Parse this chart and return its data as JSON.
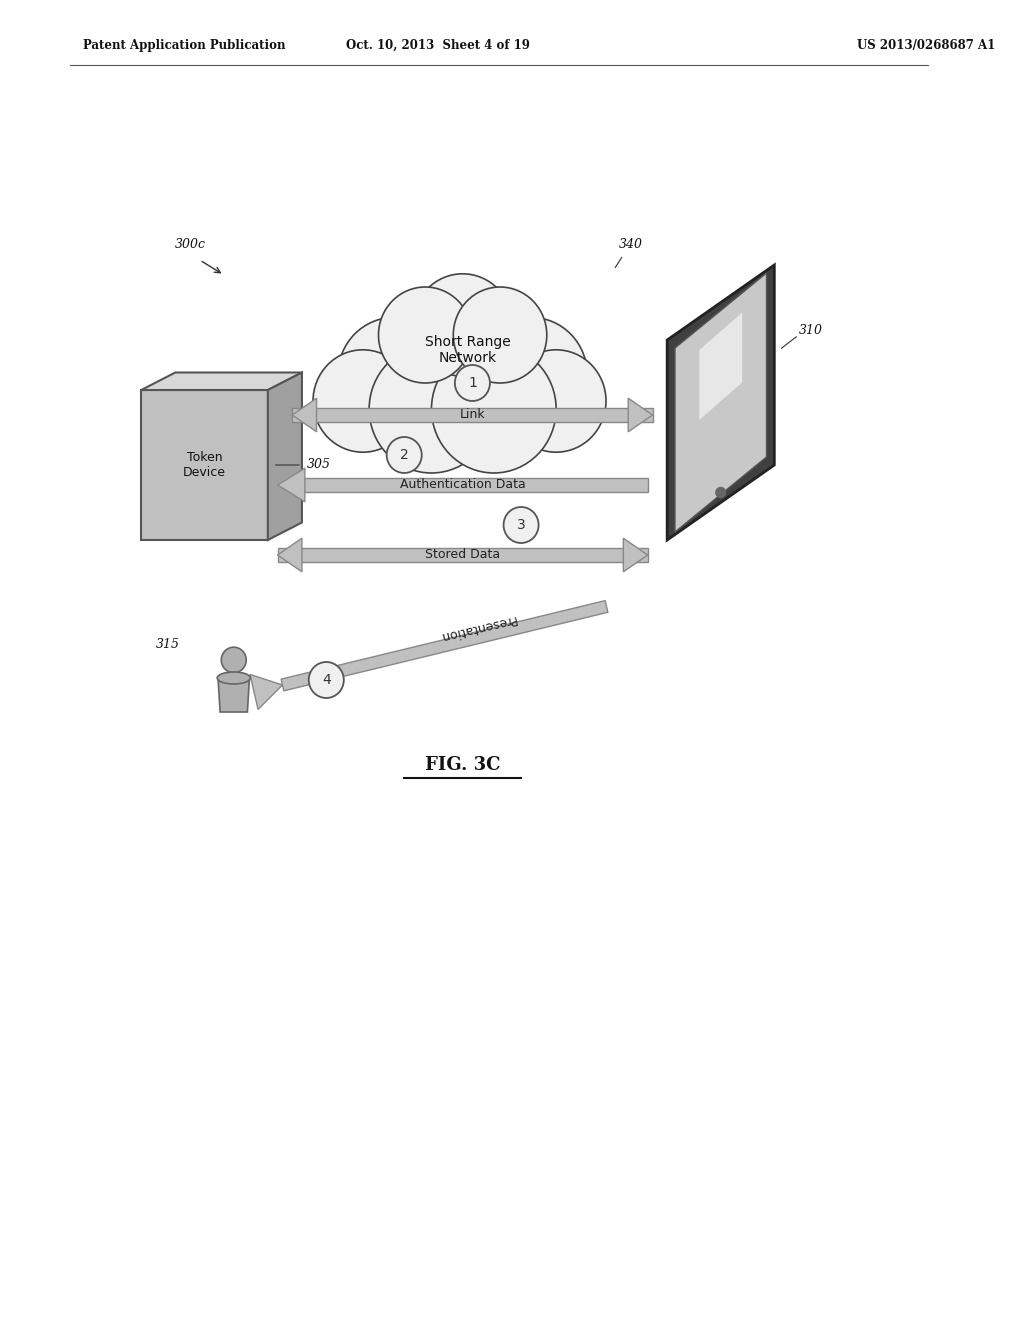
{
  "bg_color": "#ffffff",
  "header_left": "Patent Application Publication",
  "header_center": "Oct. 10, 2013  Sheet 4 of 19",
  "header_right": "US 2013/0268687 A1",
  "figure_label": "FIG. 3C",
  "label_300c": "300c",
  "label_305": "305",
  "label_310": "310",
  "label_315": "315",
  "label_340": "340",
  "cloud_label": "Short Range\nNetwork",
  "token_label": "Token\nDevice",
  "step1_label": "Link",
  "step2_label": "Authentication Data",
  "step3_label": "Stored Data",
  "step4_label": "Presentation",
  "arrow_color": "#b0b0b0",
  "arrow_edge_color": "#888888",
  "cloud_fill": "#ffffff",
  "cloud_edge": "#333333",
  "box_fill": "#c8c8c8",
  "box_edge": "#555555",
  "text_color": "#111111",
  "circle_fill": "#ffffff",
  "circle_edge": "#555555"
}
